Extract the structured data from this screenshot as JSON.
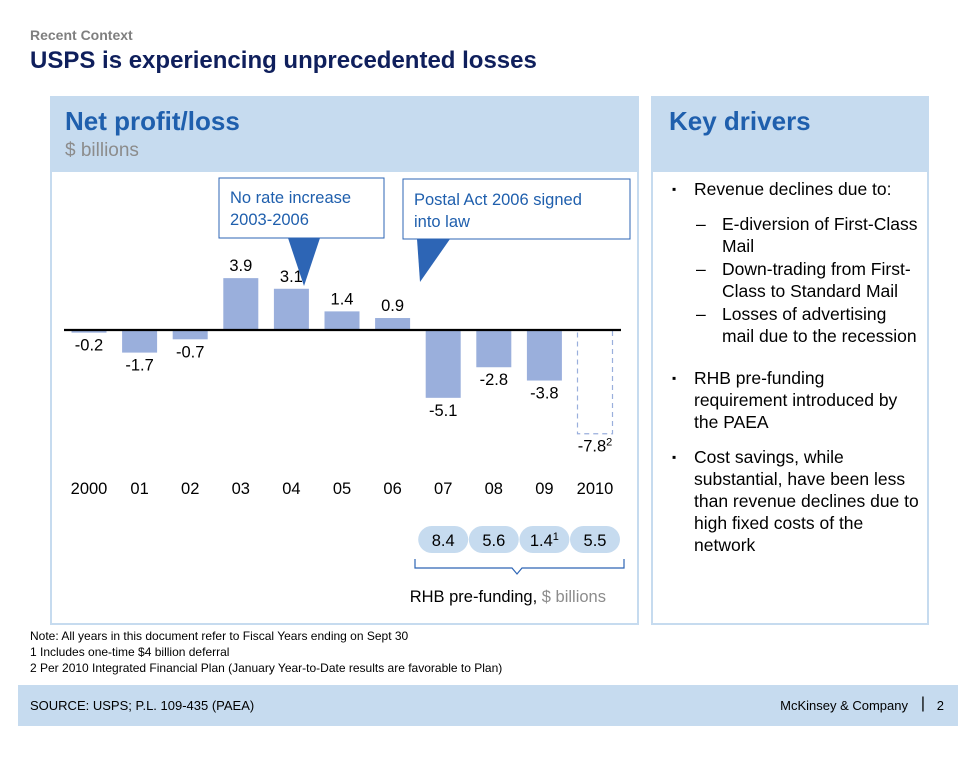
{
  "header": {
    "kicker": "Recent Context",
    "title": "USPS is experiencing unprecedented losses"
  },
  "left_panel": {
    "title": "Net profit/loss",
    "subtitle": "$ billions"
  },
  "right_panel": {
    "title": "Key drivers",
    "drivers": [
      {
        "text": "Revenue declines due to:",
        "subitems": [
          "E-diversion of First-Class Mail",
          "Down-trading from First-Class to Standard Mail",
          "Losses of advertising mail due to the recession"
        ]
      },
      {
        "text": "RHB pre-funding requirement introduced by the PAEA",
        "subitems": []
      },
      {
        "text": "Cost savings, while substantial, have been less than revenue declines due to high fixed costs of the network",
        "subitems": []
      }
    ]
  },
  "chart_data": {
    "type": "bar",
    "title": "Net profit/loss",
    "subtitle": "$ billions",
    "categories": [
      "2000",
      "01",
      "02",
      "03",
      "04",
      "05",
      "06",
      "07",
      "08",
      "09",
      "2010"
    ],
    "values": [
      -0.2,
      -1.7,
      -0.7,
      3.9,
      3.1,
      1.4,
      0.9,
      -5.1,
      -2.8,
      -3.8,
      -7.8
    ],
    "value_labels": [
      "-0.2",
      "-1.7",
      "-0.7",
      "3.9",
      "3.1",
      "1.4",
      "0.9",
      "-5.1",
      "-2.8",
      "-3.8",
      "-7.8"
    ],
    "value_footnotes": [
      "",
      "",
      "",
      "",
      "",
      "",
      "",
      "",
      "",
      "",
      "2"
    ],
    "projected": [
      false,
      false,
      false,
      false,
      false,
      false,
      false,
      false,
      false,
      false,
      true
    ],
    "bar_color": "#9aafdc",
    "callouts": [
      {
        "text": "No rate increase 2003-2006",
        "lines": [
          "No rate increase",
          "2003-2006"
        ]
      },
      {
        "text": "Postal Act 2006 signed into law",
        "lines": [
          "Postal Act 2006 signed",
          "into law"
        ]
      }
    ],
    "rhb_prefunding": {
      "label": "RHB pre-funding,",
      "unit": "$ billions",
      "categories": [
        "07",
        "08",
        "09",
        "2010"
      ],
      "values": [
        8.4,
        5.6,
        1.4,
        5.5
      ],
      "value_labels": [
        "8.4",
        "5.6",
        "1.4",
        "5.5"
      ],
      "footnotes": [
        "",
        "",
        "1",
        ""
      ]
    }
  },
  "notes": [
    "Note: All years in this document refer to Fiscal Years ending on Sept 30",
    "1 Includes one-time $4 billion deferral",
    "2 Per 2010 Integrated Financial Plan (January Year-to-Date results are favorable to Plan)"
  ],
  "footer": {
    "source": "SOURCE: USPS; P.L. 109-435 (PAEA)",
    "firm": "McKinsey & Company",
    "separator": "|",
    "page": "2"
  },
  "colors": {
    "accent": "#1f5fad",
    "headline": "#0f1f5c",
    "panel_header": "#c6dbef",
    "bar": "#9aafdc",
    "callout_arrow": "#2d65b5",
    "pill": "#c6dbef",
    "muted_text": "#8c8c8c"
  }
}
